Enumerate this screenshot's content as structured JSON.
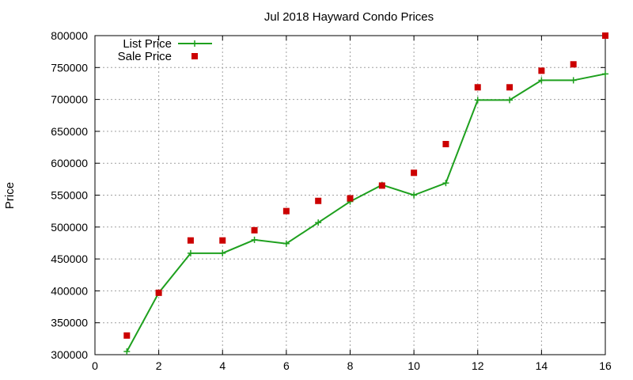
{
  "chart_data": {
    "type": "line",
    "title": "Jul 2018 Hayward Condo Prices",
    "xlabel": "",
    "ylabel": "Price",
    "xlim": [
      0,
      16
    ],
    "ylim": [
      300000,
      800000
    ],
    "x_ticks": [
      0,
      2,
      4,
      6,
      8,
      10,
      12,
      14,
      16
    ],
    "y_ticks": [
      300000,
      350000,
      400000,
      450000,
      500000,
      550000,
      600000,
      650000,
      700000,
      750000,
      800000
    ],
    "grid": true,
    "legend_position": "top-left",
    "series": [
      {
        "name": "List Price",
        "style": "line+cross",
        "color": "#1ea01e",
        "x": [
          1,
          2,
          3,
          4,
          5,
          6,
          7,
          8,
          9,
          10,
          11,
          12,
          13,
          14,
          15,
          16
        ],
        "y": [
          305000,
          397000,
          459000,
          459000,
          480000,
          474000,
          507000,
          540000,
          566000,
          550000,
          569000,
          699000,
          699000,
          730000,
          730000,
          740000
        ]
      },
      {
        "name": "Sale Price",
        "style": "square",
        "color": "#cc0000",
        "x": [
          1,
          2,
          3,
          4,
          5,
          6,
          7,
          8,
          9,
          10,
          11,
          12,
          13,
          14,
          15,
          16
        ],
        "y": [
          330000,
          397000,
          479000,
          479000,
          495000,
          525000,
          541000,
          545000,
          565000,
          585000,
          630000,
          719000,
          719000,
          745000,
          755000,
          800000
        ]
      }
    ]
  }
}
